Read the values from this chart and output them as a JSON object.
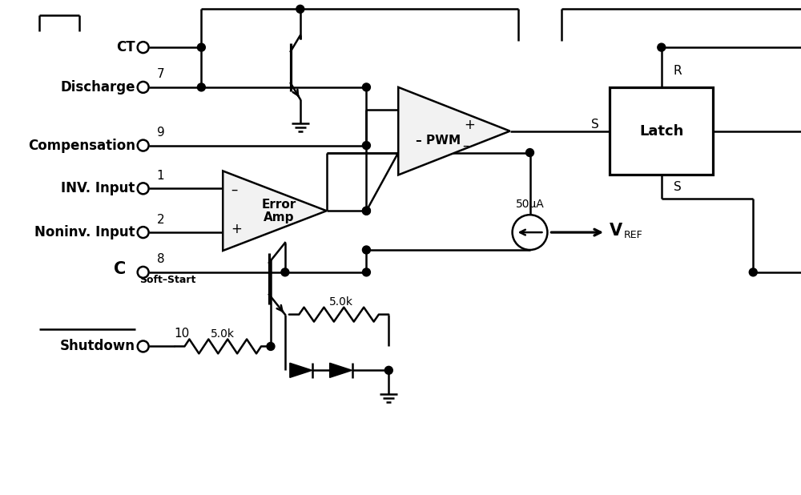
{
  "bg_color": "#ffffff",
  "line_color": "#000000",
  "lw": 1.8,
  "fig_w": 10.0,
  "fig_h": 6.18,
  "labels": {
    "CT": "CT",
    "Discharge": "Discharge",
    "Compensation": "Compensation",
    "INV_Input": "INV. Input",
    "Noninv_Input": "Noninv. Input",
    "CSoftStart_C": "C",
    "CSoftStart_sub": "Soft–Start",
    "Shutdown": "Shutdown",
    "pin7": "7",
    "pin9": "9",
    "pin1": "1",
    "pin2": "2",
    "pin8": "8",
    "pin10": "10",
    "ErrorAmp_line1": "Error",
    "ErrorAmp_line2": "Amp",
    "PWM_text": "– PWM",
    "plus": "+",
    "minus": "–",
    "Latch": "Latch",
    "R_label": "R",
    "S_label": "S",
    "current_src": "50μA",
    "R1_label": "5.0k",
    "R2_label": "5.0k",
    "VREF_V": "V",
    "VREF_sub": "REF"
  }
}
